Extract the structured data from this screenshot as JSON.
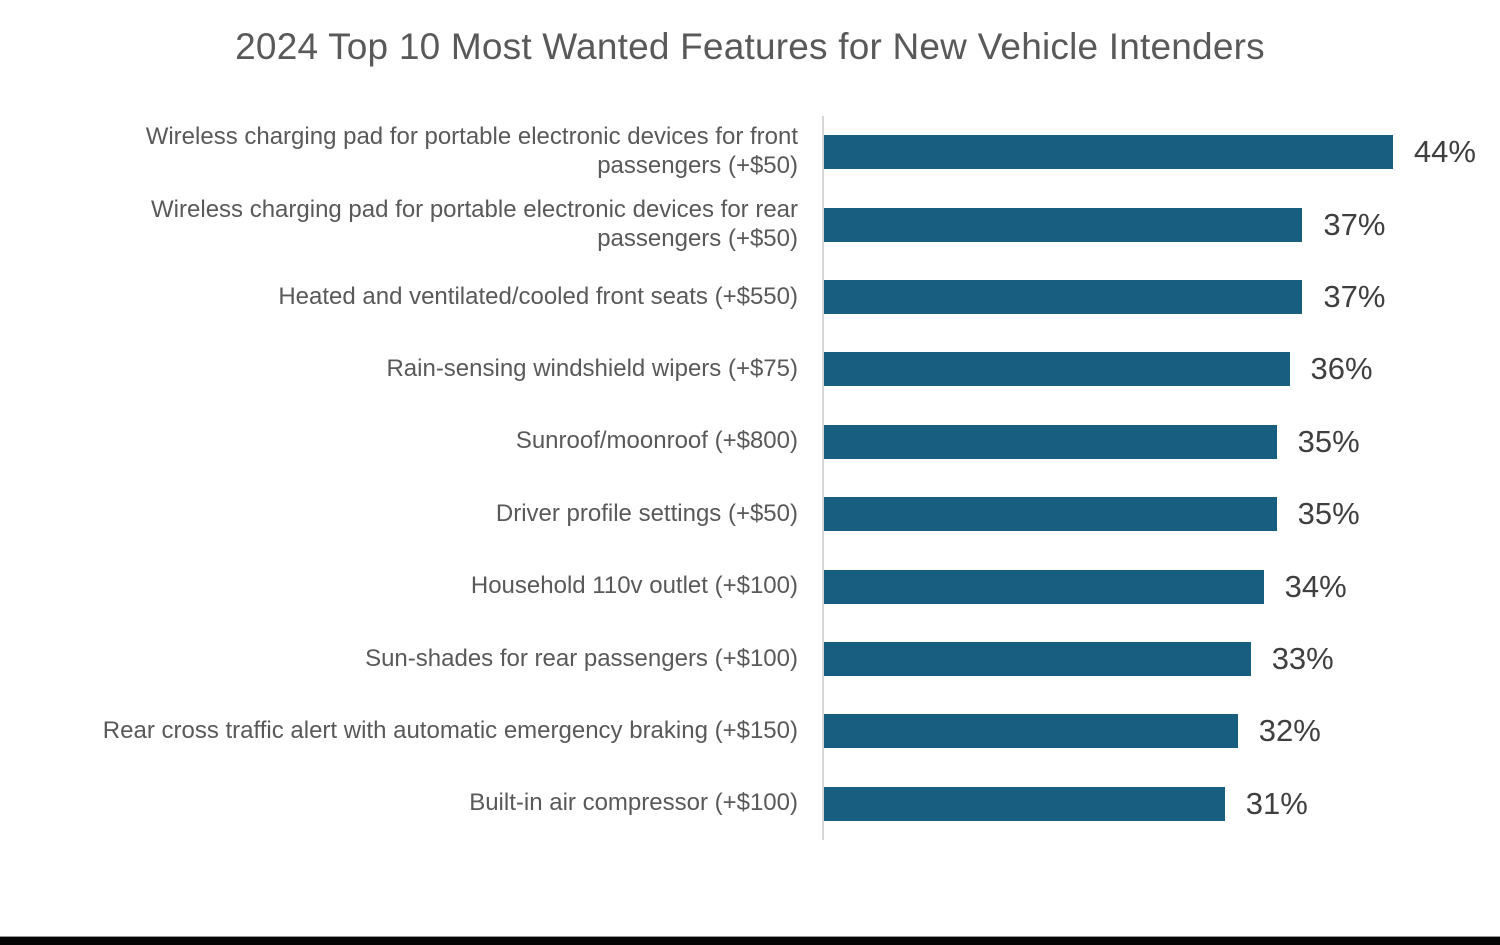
{
  "colors": {
    "bar": "#185e80",
    "title_text": "#595959",
    "category_text": "#595959",
    "value_text": "#3f3f3f",
    "axis_line": "#d6d6d6",
    "bottom_edge": "#050505"
  },
  "chart_data": {
    "type": "bar",
    "orientation": "horizontal",
    "title": "2024 Top 10 Most Wanted Features for New Vehicle Intenders",
    "categories": [
      "Wireless charging pad for portable electronic devices for front passengers (+$50)",
      "Wireless charging pad for portable electronic devices for rear passengers (+$50)",
      "Heated and ventilated/cooled front seats (+$550)",
      "Rain-sensing windshield wipers (+$75)",
      "Sunroof/moonroof (+$800)",
      "Driver profile settings (+$50)",
      "Household 110v outlet (+$100)",
      "Sun-shades for rear passengers (+$100)",
      "Rear cross traffic alert with automatic emergency braking (+$150)",
      "Built-in air compressor (+$100)"
    ],
    "values": [
      44,
      37,
      37,
      36,
      35,
      35,
      34,
      33,
      32,
      31
    ],
    "value_labels": [
      "44%",
      "37%",
      "37%",
      "36%",
      "35%",
      "35%",
      "34%",
      "33%",
      "32%",
      "31%"
    ],
    "xlabel": "",
    "ylabel": "",
    "xlim": [
      0,
      50
    ],
    "grid": false,
    "legend": false,
    "bar_color": "#185e80",
    "data_labels_position": "outside-end"
  }
}
